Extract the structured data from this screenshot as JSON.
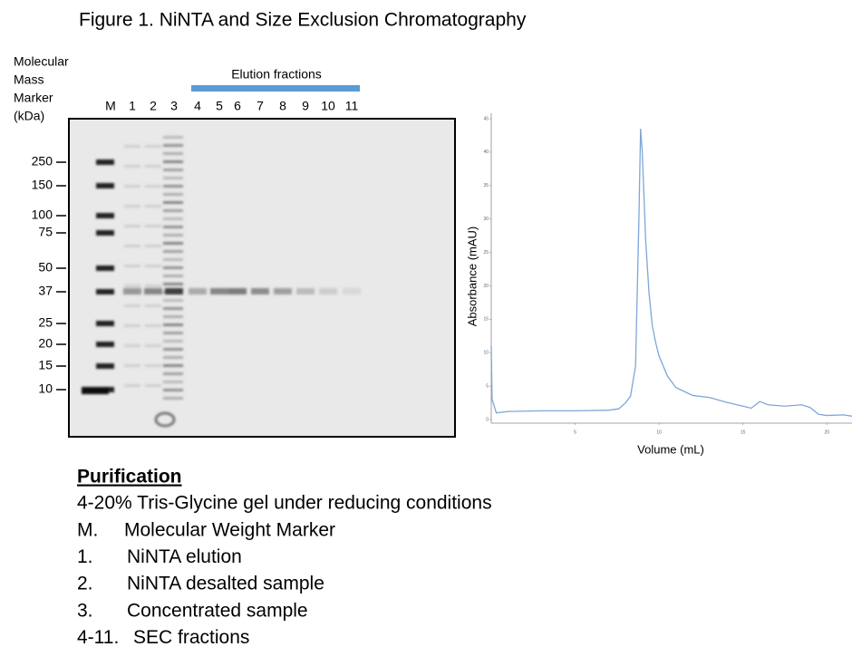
{
  "figure_title": "Figure 1. NiNTA and Size Exclusion Chromatography",
  "gel": {
    "marker_title": [
      "Molecular",
      "Mass",
      "Marker",
      "(kDa)"
    ],
    "elution_label": "Elution fractions",
    "lanes": [
      "M",
      "1",
      "2",
      "3",
      "4",
      "5",
      "6",
      "7",
      "8",
      "9",
      "10",
      "11"
    ],
    "markers": [
      250,
      150,
      100,
      75,
      50,
      37,
      25,
      20,
      15,
      10
    ]
  },
  "chart_data": {
    "type": "line",
    "xlabel": "Volume (mL)",
    "ylabel": "Absorbance (mAU)",
    "x": [
      0,
      0.05,
      0.3,
      1,
      3,
      5,
      7,
      7.6,
      8,
      8.3,
      8.6,
      8.8,
      8.9,
      9.0,
      9.2,
      9.4,
      9.6,
      9.8,
      10,
      10.5,
      11,
      12,
      13,
      14,
      15,
      15.5,
      16,
      16.5,
      17.5,
      18.5,
      19,
      19.5,
      20,
      21,
      21.5
    ],
    "series": [
      {
        "color": "#7ea6d8",
        "values": [
          11,
          3,
          1,
          1.2,
          1.3,
          1.3,
          1.4,
          1.6,
          2.5,
          3.5,
          8,
          30,
          43.5,
          40,
          27,
          19,
          14,
          11.5,
          9.5,
          6.5,
          4.8,
          3.6,
          3.3,
          2.6,
          2.0,
          1.7,
          2.7,
          2.2,
          2.0,
          2.2,
          1.8,
          0.8,
          0.6,
          0.7,
          0.5
        ]
      }
    ],
    "xlim": [
      0,
      21.5
    ],
    "ylim": [
      0,
      45
    ],
    "xticks": [
      5,
      10,
      15,
      20
    ],
    "yticks": [
      0,
      5,
      10,
      15,
      20,
      25,
      30,
      35,
      40,
      45
    ]
  },
  "purification": {
    "heading": "Purification",
    "subtitle": "4-20% Tris-Glycine gel under reducing conditions",
    "items": [
      [
        "M.",
        "Molecular Weight Marker"
      ],
      [
        "1.",
        "NiNTA elution"
      ],
      [
        "2.",
        "NiNTA desalted sample"
      ],
      [
        "3.",
        "Concentrated sample"
      ],
      [
        "4-11.",
        "SEC fractions"
      ]
    ]
  }
}
